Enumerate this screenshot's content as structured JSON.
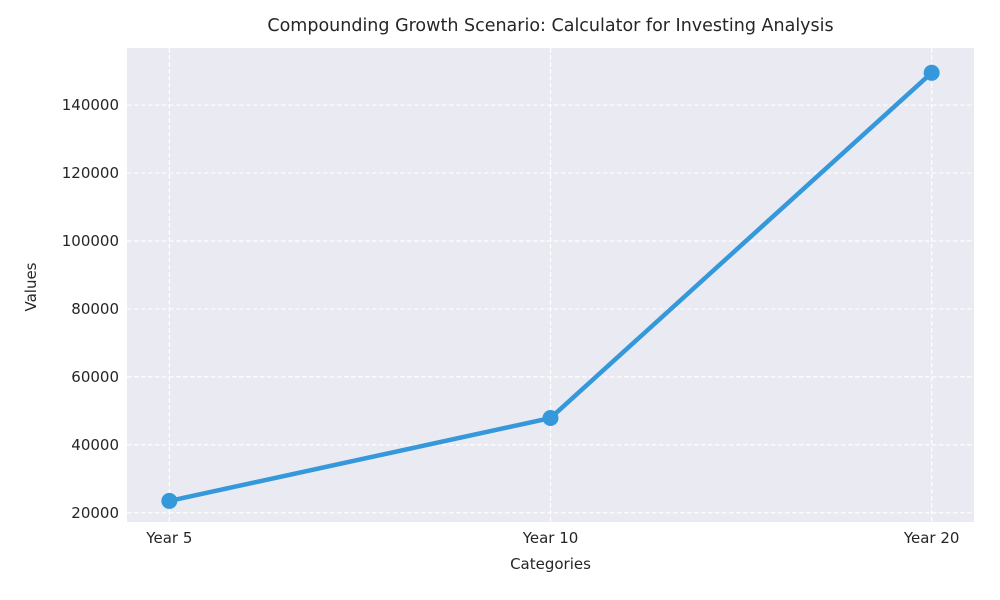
{
  "chart_data": {
    "type": "line",
    "title": "Compounding Growth Scenario: Calculator for Investing Analysis",
    "xlabel": "Categories",
    "ylabel": "Values",
    "categories": [
      "Year 5",
      "Year 10",
      "Year 20"
    ],
    "series": [
      {
        "name": "Values",
        "values": [
          23500,
          47900,
          149500
        ]
      }
    ],
    "yticks": [
      20000,
      40000,
      60000,
      80000,
      100000,
      120000,
      140000
    ],
    "ylim": [
      17300,
      156800
    ],
    "x_margin_fraction": 0.05,
    "grid": true,
    "grid_style": "dashed",
    "legend": false,
    "colors": {
      "line": "#3498db",
      "marker": "#3498db",
      "plot_background": "#eaeaf2",
      "gridline": "#ffffff",
      "text": "#262626"
    }
  }
}
